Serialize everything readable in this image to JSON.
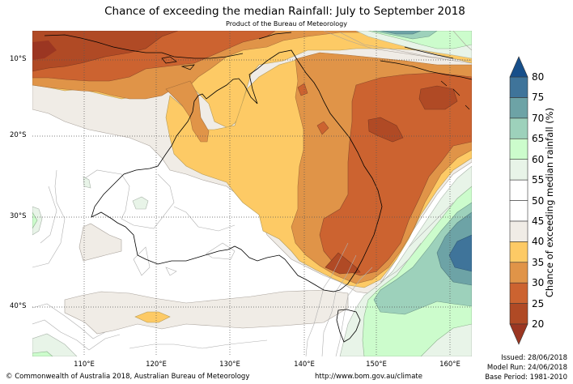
{
  "header": {
    "title": "Chance of exceeding the median Rainfall: July to September 2018",
    "subtitle": "Product of the Bureau of Meteorology"
  },
  "map": {
    "lat_labels": [
      "10°S",
      "20°S",
      "30°S",
      "40°S"
    ],
    "lon_labels": [
      "110°E",
      "120°E",
      "130°E",
      "140°E",
      "150°E",
      "160°E"
    ]
  },
  "colorbar": {
    "label": "Chance of exceeding median rainfall (%)",
    "ticks": [
      "80",
      "75",
      "70",
      "65",
      "60",
      "55",
      "50",
      "45",
      "40",
      "35",
      "30",
      "25",
      "20"
    ],
    "levels": [
      {
        "range": "20-25",
        "color": "#b04a25"
      },
      {
        "range": "25-30",
        "color": "#cc6330"
      },
      {
        "range": "30-35",
        "color": "#e09448"
      },
      {
        "range": "35-40",
        "color": "#fdca65"
      },
      {
        "range": "40-45",
        "color": "#f0ece6"
      },
      {
        "range": "45-50",
        "color": "#ffffff"
      },
      {
        "range": "50-55",
        "color": "#ffffff"
      },
      {
        "range": "55-60",
        "color": "#e8f4e8"
      },
      {
        "range": "60-65",
        "color": "#ccfccc"
      },
      {
        "range": "65-70",
        "color": "#9dd1bb"
      },
      {
        "range": "70-75",
        "color": "#6da3a6"
      },
      {
        "range": "75-80",
        "color": "#3f749a"
      }
    ],
    "over_color": "#174f8a",
    "under_color": "#9b3622"
  },
  "footer": {
    "copyright": "© Commonwealth of Australia 2018, Australian Bureau of Meteorology",
    "url": "http://www.bom.gov.au/climate",
    "issued": "Issued: 28/06/2018",
    "model_run": "Model Run: 24/06/2018",
    "base_period": "Base Period: 1981-2010"
  }
}
